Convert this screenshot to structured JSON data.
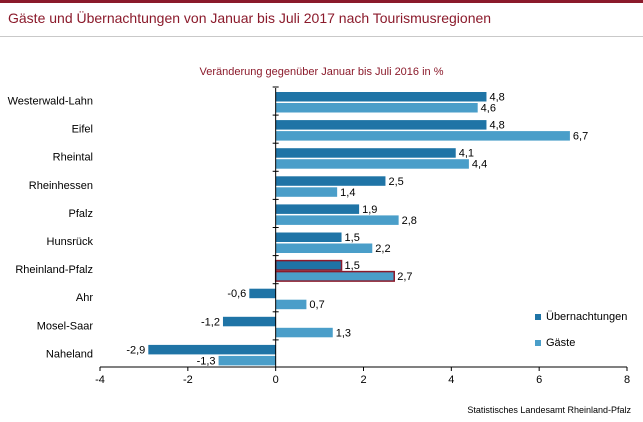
{
  "header": {
    "title": "Gäste und Übernachtungen von Januar bis Juli 2017 nach Tourismusregionen"
  },
  "footer": {
    "source": "Statistisches Landesamt Rheinland-Pfalz"
  },
  "colors": {
    "accent": "#8b1a2b",
    "uebernachtungen": "#1f74a6",
    "gaeste": "#4a9ec9",
    "highlight_border": "#8b1a2b"
  },
  "chart_data": {
    "type": "bar",
    "orientation": "horizontal",
    "subtitle": "Veränderung gegenüber Januar bis Juli 2016 in %",
    "categories": [
      "Westerwald-Lahn",
      "Eifel",
      "Rheintal",
      "Rheinhessen",
      "Pfalz",
      "Hunsrück",
      "Rheinland-Pfalz",
      "Ahr",
      "Mosel-Saar",
      "Naheland"
    ],
    "series": [
      {
        "name": "Übernachtungen",
        "values": [
          4.8,
          4.8,
          4.1,
          2.5,
          1.9,
          1.5,
          1.5,
          -0.6,
          -1.2,
          -2.9
        ],
        "labels": [
          "4,8",
          "4,8",
          "4,1",
          "2,5",
          "1,9",
          "1,5",
          "1,5",
          "-0,6",
          "-1,2",
          "-2,9"
        ]
      },
      {
        "name": "Gäste",
        "values": [
          4.6,
          6.7,
          4.4,
          1.4,
          2.8,
          2.2,
          2.7,
          0.7,
          1.3,
          -1.3
        ],
        "labels": [
          "4,6",
          "6,7",
          "4,4",
          "1,4",
          "2,8",
          "2,2",
          "2,7",
          "0,7",
          "1,3",
          "-1,3"
        ]
      }
    ],
    "highlight_category": "Rheinland-Pfalz",
    "xlim": [
      -4,
      8
    ],
    "xticks": [
      -4,
      -2,
      0,
      2,
      4,
      6,
      8
    ],
    "legend": "right"
  }
}
